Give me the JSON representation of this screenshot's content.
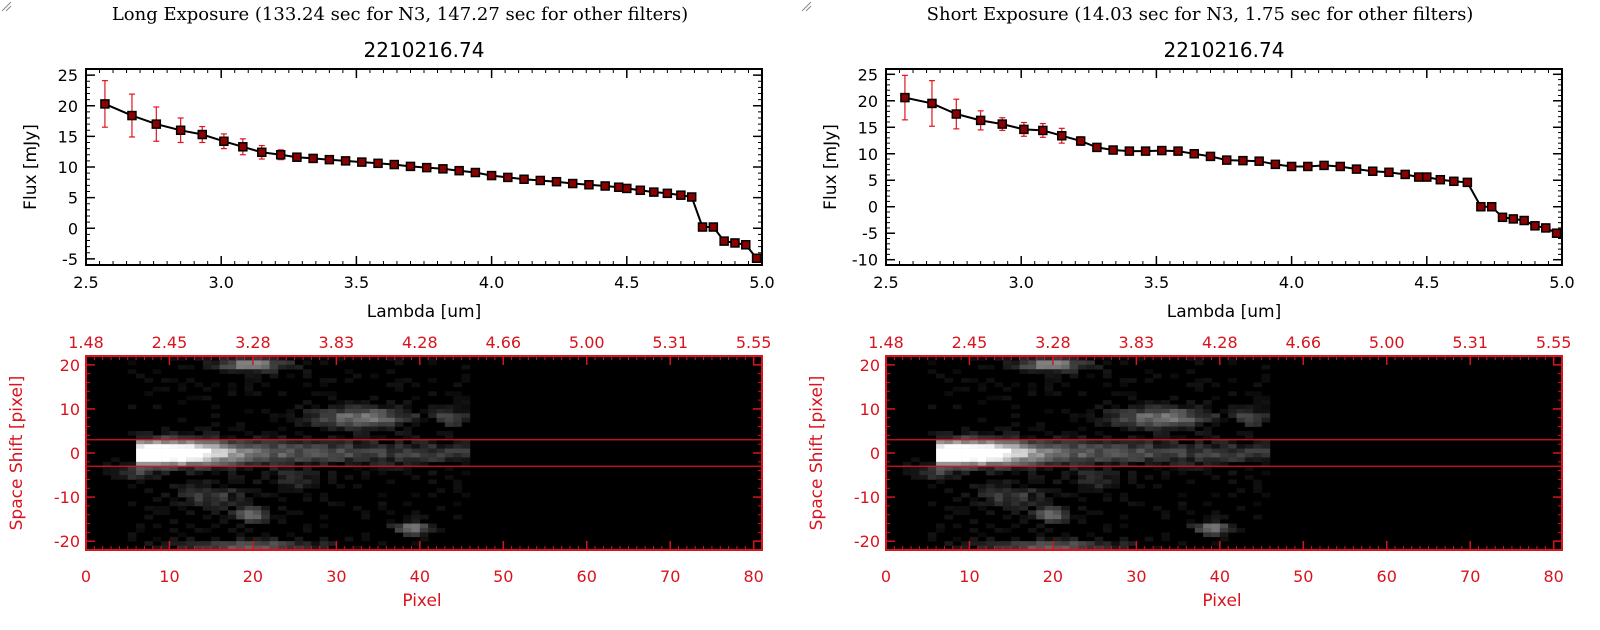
{
  "chart_data": [
    {
      "id": "left",
      "exposure_title": "Long Exposure (133.24 sec for N3, 147.27 sec for other filters)",
      "spectrum": {
        "type": "line",
        "title": "2210216.74",
        "xlabel": "Lambda [um]",
        "ylabel": "Flux [mJy]",
        "xlim": [
          2.5,
          5.0
        ],
        "ylim": [
          -6,
          26
        ],
        "xticks": [
          2.5,
          3.0,
          3.5,
          4.0,
          4.5,
          5.0
        ],
        "xtick_labels": [
          "2.5",
          "3.0",
          "3.5",
          "4.0",
          "4.5",
          "5.0"
        ],
        "yticks": [
          -5,
          0,
          5,
          10,
          15,
          20,
          25
        ],
        "ytick_labels": [
          "-5",
          "0",
          "5",
          "10",
          "15",
          "20",
          "25"
        ],
        "x": [
          2.57,
          2.67,
          2.76,
          2.85,
          2.93,
          3.01,
          3.08,
          3.15,
          3.22,
          3.28,
          3.34,
          3.4,
          3.46,
          3.52,
          3.58,
          3.64,
          3.7,
          3.76,
          3.82,
          3.88,
          3.94,
          4.0,
          4.06,
          4.12,
          4.18,
          4.24,
          4.3,
          4.36,
          4.42,
          4.47,
          4.5,
          4.55,
          4.6,
          4.65,
          4.7,
          4.74,
          4.78,
          4.82,
          4.86,
          4.9,
          4.94,
          4.98
        ],
        "y": [
          20.3,
          18.4,
          17.0,
          16.0,
          15.3,
          14.2,
          13.3,
          12.4,
          12.0,
          11.6,
          11.4,
          11.2,
          11.0,
          10.8,
          10.6,
          10.4,
          10.1,
          9.9,
          9.7,
          9.4,
          9.1,
          8.6,
          8.3,
          8.0,
          7.8,
          7.6,
          7.3,
          7.1,
          6.9,
          6.7,
          6.5,
          6.2,
          5.9,
          5.7,
          5.4,
          5.1,
          0.2,
          0.2,
          -2.1,
          -2.4,
          -2.7,
          -4.9
        ],
        "yerr": [
          3.8,
          3.5,
          2.8,
          2.0,
          1.3,
          1.2,
          1.3,
          1.1,
          0.8,
          0.5,
          0.4,
          0.4,
          0.4,
          0.3,
          0.3,
          0.3,
          0.3,
          0.3,
          0.3,
          0.3,
          0.3,
          0.3,
          0.3,
          0.3,
          0.3,
          0.3,
          0.3,
          0.3,
          0.3,
          0.3,
          0.3,
          0.3,
          0.3,
          0.3,
          0.3,
          0.3,
          0.3,
          0.3,
          0.3,
          0.3,
          0.3,
          0.3
        ]
      },
      "image": {
        "type": "heatmap",
        "xlabel": "Pixel",
        "ylabel": "Space Shift [pixel]",
        "xlim": [
          0,
          81
        ],
        "ylim": [
          -22,
          22
        ],
        "xticks": [
          0,
          10,
          20,
          30,
          40,
          50,
          60,
          70,
          80
        ],
        "xtick_labels": [
          "0",
          "10",
          "20",
          "30",
          "40",
          "50",
          "60",
          "70",
          "80"
        ],
        "yticks": [
          -20,
          -10,
          0,
          10,
          20
        ],
        "ytick_labels": [
          "-20",
          "-10",
          "0",
          "10",
          "20"
        ],
        "top_tick_labels": [
          "1.48",
          "2.45",
          "3.28",
          "3.83",
          "4.28",
          "4.66",
          "5.00",
          "5.31",
          "5.55"
        ],
        "aperture_lines": [
          3,
          -3
        ],
        "data_extent_pixel": 46
      }
    },
    {
      "id": "right",
      "exposure_title": "Short Exposure (14.03 sec for N3, 1.75 sec for other filters)",
      "spectrum": {
        "type": "line",
        "title": "2210216.74",
        "xlabel": "Lambda [um]",
        "ylabel": "Flux [mJy]",
        "xlim": [
          2.5,
          5.0
        ],
        "ylim": [
          -11,
          26
        ],
        "xticks": [
          2.5,
          3.0,
          3.5,
          4.0,
          4.5,
          5.0
        ],
        "xtick_labels": [
          "2.5",
          "3.0",
          "3.5",
          "4.0",
          "4.5",
          "5.0"
        ],
        "yticks": [
          -10,
          -5,
          0,
          5,
          10,
          15,
          20,
          25
        ],
        "ytick_labels": [
          "-10",
          "-5",
          "0",
          "5",
          "10",
          "15",
          "20",
          "25"
        ],
        "x": [
          2.57,
          2.67,
          2.76,
          2.85,
          2.93,
          3.01,
          3.08,
          3.15,
          3.22,
          3.28,
          3.34,
          3.4,
          3.46,
          3.52,
          3.58,
          3.64,
          3.7,
          3.76,
          3.82,
          3.88,
          3.94,
          4.0,
          4.06,
          4.12,
          4.18,
          4.24,
          4.3,
          4.36,
          4.42,
          4.47,
          4.5,
          4.55,
          4.6,
          4.65,
          4.7,
          4.74,
          4.78,
          4.82,
          4.86,
          4.9,
          4.94,
          4.98
        ],
        "y": [
          20.6,
          19.5,
          17.5,
          16.3,
          15.6,
          14.6,
          14.4,
          13.4,
          12.4,
          11.2,
          10.7,
          10.5,
          10.5,
          10.6,
          10.5,
          10.0,
          9.5,
          8.8,
          8.7,
          8.6,
          8.0,
          7.6,
          7.6,
          7.8,
          7.6,
          7.1,
          6.7,
          6.5,
          6.1,
          5.6,
          5.6,
          5.1,
          4.8,
          4.6,
          0.0,
          0.0,
          -2.0,
          -2.3,
          -2.6,
          -3.6,
          -4.0,
          -5.0
        ],
        "yerr": [
          4.2,
          4.3,
          2.8,
          1.8,
          1.2,
          1.3,
          1.3,
          1.4,
          0.8,
          0.6,
          0.5,
          0.4,
          0.4,
          0.4,
          0.4,
          0.4,
          0.4,
          0.4,
          0.4,
          0.4,
          0.4,
          0.4,
          0.4,
          0.4,
          0.4,
          0.4,
          0.4,
          0.4,
          0.4,
          0.4,
          0.4,
          0.4,
          0.4,
          0.4,
          0.4,
          0.4,
          0.4,
          0.4,
          0.4,
          0.4,
          0.4,
          0.4
        ]
      },
      "image": {
        "type": "heatmap",
        "xlabel": "Pixel",
        "ylabel": "Space Shift [pixel]",
        "xlim": [
          0,
          81
        ],
        "ylim": [
          -22,
          22
        ],
        "xticks": [
          0,
          10,
          20,
          30,
          40,
          50,
          60,
          70,
          80
        ],
        "xtick_labels": [
          "0",
          "10",
          "20",
          "30",
          "40",
          "50",
          "60",
          "70",
          "80"
        ],
        "yticks": [
          -20,
          -10,
          0,
          10,
          20
        ],
        "ytick_labels": [
          "-20",
          "-10",
          "0",
          "10",
          "20"
        ],
        "top_tick_labels": [
          "1.48",
          "2.45",
          "3.28",
          "3.83",
          "4.28",
          "4.66",
          "5.00",
          "5.31",
          "5.55"
        ],
        "aperture_lines": [
          3,
          -3
        ],
        "data_extent_pixel": 46
      }
    }
  ],
  "colors": {
    "marker": "#8b0000",
    "errorbar": "#e0141e",
    "image_axes": "#d9141e",
    "line": "#000000"
  },
  "icons": {
    "resize": "resize-grip-icon"
  }
}
